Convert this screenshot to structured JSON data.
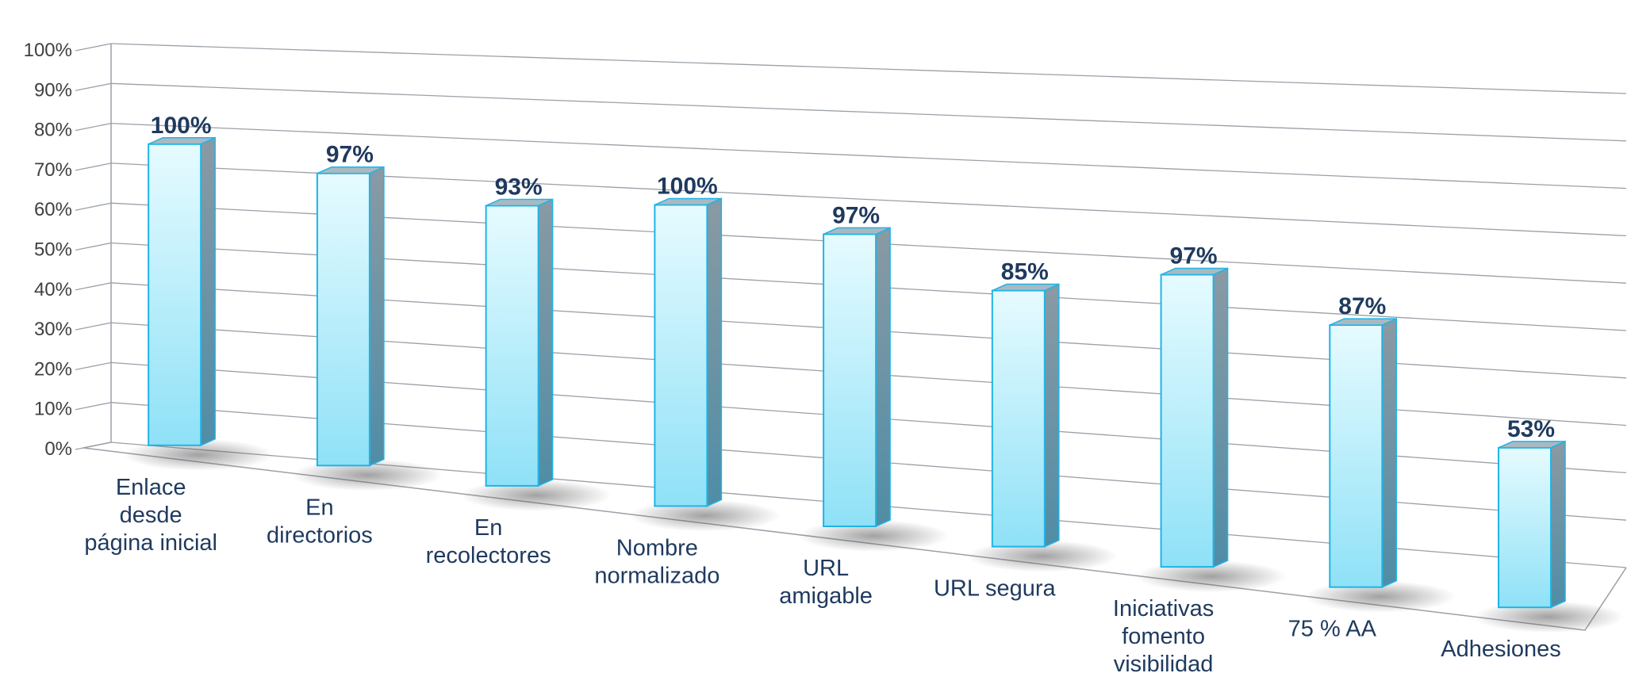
{
  "chart_data": {
    "type": "bar",
    "categories": [
      [
        "Enlace",
        "desde",
        "página inicial"
      ],
      [
        "En",
        "directorios"
      ],
      [
        "En",
        "recolectores"
      ],
      [
        "Nombre",
        "normalizado"
      ],
      [
        "URL",
        "amigable"
      ],
      [
        "URL segura"
      ],
      [
        "Iniciativas",
        "fomento",
        "visibilidad"
      ],
      [
        "75 % AA"
      ],
      [
        "Adhesiones"
      ]
    ],
    "values": [
      100,
      97,
      93,
      100,
      97,
      85,
      97,
      87,
      53
    ],
    "data_labels": [
      "100%",
      "97%",
      "93%",
      "100%",
      "97%",
      "85%",
      "97%",
      "87%",
      "53%"
    ],
    "y_ticks": [
      "0%",
      "10%",
      "20%",
      "30%",
      "40%",
      "50%",
      "60%",
      "70%",
      "80%",
      "90%",
      "100%"
    ],
    "ylim": [
      0,
      100
    ],
    "grid": true,
    "style": "3d-perspective-column",
    "colors": {
      "bar_front_top": "#e6fbff",
      "bar_front_bottom": "#8fe1f7",
      "bar_edge": "#1fb4e6",
      "bar_side_top": "#8a9aa4",
      "bar_side_bottom": "#4f8da6",
      "bar_top": "#a9b9c2",
      "label": "#1f3a5f",
      "grid": "#9aa0a8"
    }
  }
}
